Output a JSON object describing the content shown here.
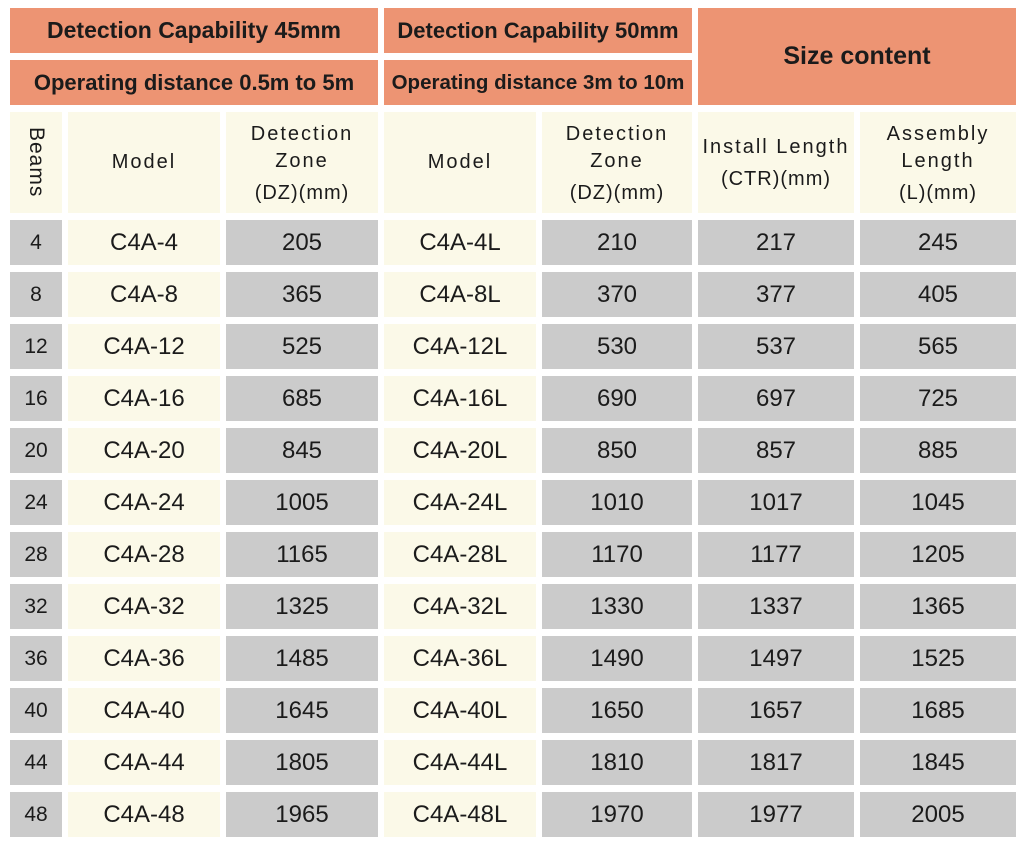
{
  "chart_data": {
    "type": "table",
    "groups": {
      "cap45": {
        "title": "Detection Capability 45mm",
        "subtitle": "Operating distance 0.5m to 5m"
      },
      "cap50": {
        "title": "Detection Capability 50mm",
        "subtitle": "Operating distance 3m to 10m"
      },
      "size": {
        "title": "Size content"
      }
    },
    "columns": [
      {
        "label": "Beams",
        "unit": ""
      },
      {
        "label": "Model",
        "unit": ""
      },
      {
        "label": "Detection Zone",
        "unit": "(DZ)(mm)"
      },
      {
        "label": "Model",
        "unit": ""
      },
      {
        "label": "Detection Zone",
        "unit": "(DZ)(mm)"
      },
      {
        "label": "Install Length",
        "unit": "(CTR)(mm)"
      },
      {
        "label": "Assembly Length",
        "unit": "(L)(mm)"
      }
    ],
    "rows": [
      [
        4,
        "C4A-4",
        205,
        "C4A-4L",
        210,
        217,
        245
      ],
      [
        8,
        "C4A-8",
        365,
        "C4A-8L",
        370,
        377,
        405
      ],
      [
        12,
        "C4A-12",
        525,
        "C4A-12L",
        530,
        537,
        565
      ],
      [
        16,
        "C4A-16",
        685,
        "C4A-16L",
        690,
        697,
        725
      ],
      [
        20,
        "C4A-20",
        845,
        "C4A-20L",
        850,
        857,
        885
      ],
      [
        24,
        "C4A-24",
        1005,
        "C4A-24L",
        1010,
        1017,
        1045
      ],
      [
        28,
        "C4A-28",
        1165,
        "C4A-28L",
        1170,
        1177,
        1205
      ],
      [
        32,
        "C4A-32",
        1325,
        "C4A-32L",
        1330,
        1337,
        1365
      ],
      [
        36,
        "C4A-36",
        1485,
        "C4A-36L",
        1490,
        1497,
        1525
      ],
      [
        40,
        "C4A-40",
        1645,
        "C4A-40L",
        1650,
        1657,
        1685
      ],
      [
        44,
        "C4A-44",
        1805,
        "C4A-44L",
        1810,
        1817,
        1845
      ],
      [
        48,
        "C4A-48",
        1965,
        "C4A-48L",
        1970,
        1977,
        2005
      ]
    ],
    "layout": {
      "grid": "off",
      "legend": "none"
    }
  },
  "colors": {
    "group_header_bg": "#ED9473",
    "cell_cream": "#FBF9E8",
    "cell_gray": "#CBCBCB",
    "text": "#1B1B1B",
    "background": "#FFFFFF"
  }
}
